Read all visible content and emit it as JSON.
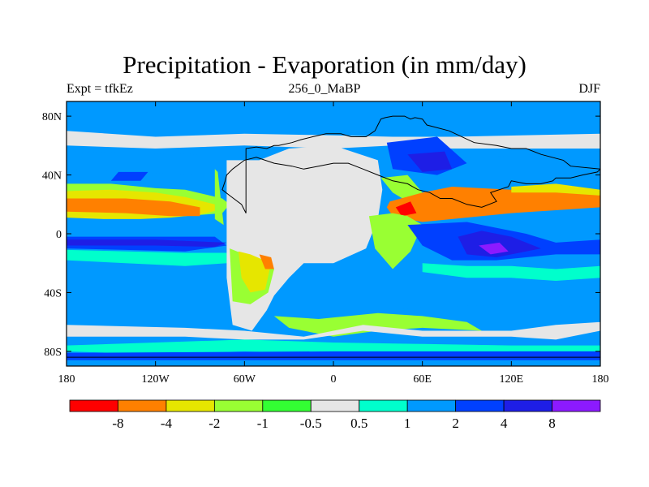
{
  "chart_data": {
    "type": "heatmap",
    "title": "Precipitation - Evaporation (in mm/day)",
    "left_string": "Expt = tfkEz",
    "center_string": "256_0_MaBP",
    "right_string": "DJF",
    "x_ticks": [
      {
        "value": -180,
        "label": "180"
      },
      {
        "value": -120,
        "label": "120W"
      },
      {
        "value": -60,
        "label": "60W"
      },
      {
        "value": 0,
        "label": "0"
      },
      {
        "value": 60,
        "label": "60E"
      },
      {
        "value": 120,
        "label": "120E"
      },
      {
        "value": 180,
        "label": "180"
      }
    ],
    "y_ticks": [
      {
        "value": 80,
        "label": "80N"
      },
      {
        "value": 40,
        "label": "40N"
      },
      {
        "value": 0,
        "label": "0"
      },
      {
        "value": -40,
        "label": "40S"
      },
      {
        "value": -80,
        "label": "80S"
      }
    ],
    "xlim": [
      -180,
      180
    ],
    "ylim": [
      -90,
      90
    ],
    "colorbar": {
      "colors": [
        "#ff0000",
        "#ff8000",
        "#e6e600",
        "#99ff33",
        "#33ff33",
        "#e6e6e6",
        "#00ffcc",
        "#0099ff",
        "#0040ff",
        "#1e1ee6",
        "#8c1aff"
      ],
      "levels": [
        "-8",
        "-4",
        "-2",
        "-1",
        "-0.5",
        "0.5",
        "1",
        "2",
        "4",
        "8"
      ]
    },
    "fill_regions": [
      {
        "color": "#e6e6e6",
        "lon": [
          -180,
          -120,
          -60,
          0,
          40,
          80,
          180,
          180,
          80,
          40,
          0,
          -60,
          -120,
          -180
        ],
        "lat": [
          70,
          66,
          68,
          67,
          66,
          66,
          68,
          58,
          58,
          60,
          58,
          60,
          58,
          60
        ]
      },
      {
        "color": "#0099ff",
        "lon": [
          -180,
          -90,
          0,
          60,
          180,
          180,
          60,
          0,
          -90,
          -180
        ],
        "lat": [
          56,
          54,
          54,
          50,
          56,
          44,
          44,
          42,
          40,
          44
        ]
      },
      {
        "color": "#0099ff",
        "lon": [
          -180,
          -90,
          0,
          60,
          120,
          180,
          180,
          120,
          60,
          0,
          -90,
          -180
        ],
        "lat": [
          -50,
          -50,
          -55,
          -50,
          -48,
          -50,
          -78,
          -78,
          -80,
          -78,
          -78,
          -78
        ]
      },
      {
        "color": "#00ffcc",
        "lon": [
          -180,
          -120,
          -60,
          0,
          60,
          120,
          180,
          180,
          120,
          60,
          0,
          -60,
          -120,
          -180
        ],
        "lat": [
          -76,
          -74,
          -72,
          -74,
          -75,
          -76,
          -76,
          -80,
          -80,
          -82,
          -82,
          -80,
          -82,
          -80
        ]
      },
      {
        "color": "#0040ff",
        "lon": [
          -180,
          0,
          180,
          180,
          0,
          -180
        ],
        "lat": [
          -81,
          -80,
          -80,
          -86,
          -86,
          -86
        ]
      },
      {
        "color": "#99ff33",
        "lon": [
          -180,
          -150,
          -120,
          -100,
          -75,
          -70,
          -75,
          -100,
          -120,
          -150,
          -180
        ],
        "lat": [
          34,
          34,
          31,
          30,
          24,
          20,
          14,
          12,
          13,
          14,
          14
        ]
      },
      {
        "color": "#e6e600",
        "lon": [
          -180,
          -150,
          -120,
          -100,
          -80,
          -78,
          -90,
          -110,
          -130,
          -155,
          -180
        ],
        "lat": [
          29,
          30,
          28,
          25,
          20,
          16,
          13,
          11,
          10,
          10,
          11
        ]
      },
      {
        "color": "#ff8000",
        "lon": [
          -180,
          -140,
          -110,
          -90,
          -90,
          -110,
          -140,
          -180
        ],
        "lat": [
          24,
          24,
          22,
          18,
          12,
          12,
          14,
          15
        ]
      },
      {
        "color": "#0040ff",
        "lon": [
          -180,
          -120,
          -80,
          -72,
          -100,
          -140,
          -180
        ],
        "lat": [
          -2,
          -2,
          -2,
          -8,
          -12,
          -11,
          -10
        ]
      },
      {
        "color": "#1e1ee6",
        "lon": [
          -180,
          -120,
          -72,
          -80,
          -120,
          -180
        ],
        "lat": [
          -4,
          -4,
          -6,
          -9,
          -8,
          -8
        ]
      },
      {
        "color": "#00ffcc",
        "lon": [
          -180,
          -100,
          -72,
          -72,
          -100,
          -140,
          -180
        ],
        "lat": [
          -11,
          -13,
          -13,
          -20,
          -22,
          -20,
          -18
        ]
      },
      {
        "color": "#0040ff",
        "lon": [
          -145,
          -125,
          -130,
          -150
        ],
        "lat": [
          42,
          42,
          36,
          36
        ]
      },
      {
        "color": "#e6e6e6",
        "lon": [
          -72,
          -50,
          -30,
          0,
          30,
          33,
          30,
          22,
          0,
          -20,
          -30,
          -40,
          -45,
          -55,
          -68,
          -72
        ],
        "lat": [
          50,
          50,
          58,
          60,
          50,
          30,
          10,
          -10,
          -20,
          -20,
          -30,
          -42,
          -52,
          -66,
          -62,
          -30
        ]
      },
      {
        "color": "#99ff33",
        "lon": [
          -70,
          -60,
          -40,
          -44,
          -56,
          -68
        ],
        "lat": [
          -10,
          -14,
          -24,
          -40,
          -48,
          -46
        ]
      },
      {
        "color": "#e6e600",
        "lon": [
          -64,
          -56,
          -42,
          -46,
          -56,
          -62
        ],
        "lat": [
          -12,
          -14,
          -20,
          -38,
          -40,
          -30
        ]
      },
      {
        "color": "#ff8000",
        "lon": [
          -50,
          -42,
          -40,
          -46
        ],
        "lat": [
          -14,
          -16,
          -24,
          -24
        ]
      },
      {
        "color": "#0040ff",
        "lon": [
          36,
          70,
          90,
          70,
          40
        ],
        "lat": [
          62,
          66,
          48,
          40,
          44
        ]
      },
      {
        "color": "#1e1ee6",
        "lon": [
          50,
          75,
          80,
          60
        ],
        "lat": [
          54,
          56,
          44,
          42
        ]
      },
      {
        "color": "#99ff33",
        "lon": [
          -80,
          -78,
          -74,
          -80
        ],
        "lat": [
          44,
          42,
          6,
          10
        ]
      },
      {
        "color": "#99ff33",
        "lon": [
          32,
          50,
          60,
          50,
          40
        ],
        "lat": [
          38,
          40,
          28,
          22,
          28
        ]
      },
      {
        "color": "#ff8000",
        "lon": [
          38,
          60,
          80,
          120,
          150,
          180,
          180,
          150,
          120,
          80,
          60,
          50,
          40,
          36
        ],
        "lat": [
          22,
          28,
          32,
          30,
          30,
          26,
          18,
          16,
          14,
          10,
          8,
          10,
          12,
          18
        ]
      },
      {
        "color": "#e6e600",
        "lon": [
          120,
          150,
          180,
          180,
          150,
          120
        ],
        "lat": [
          32,
          34,
          30,
          26,
          28,
          28
        ]
      },
      {
        "color": "#ff0000",
        "lon": [
          42,
          52,
          56,
          46
        ],
        "lat": [
          18,
          22,
          14,
          12
        ]
      },
      {
        "color": "#99ff33",
        "lon": [
          24,
          40,
          50,
          60,
          52,
          40,
          28
        ],
        "lat": [
          12,
          14,
          12,
          6,
          -12,
          -24,
          -10
        ]
      },
      {
        "color": "#0040ff",
        "lon": [
          50,
          90,
          130,
          150,
          180,
          180,
          150,
          110,
          80,
          60
        ],
        "lat": [
          6,
          8,
          0,
          -6,
          -4,
          -14,
          -14,
          -18,
          -18,
          -8
        ]
      },
      {
        "color": "#1e1ee6",
        "lon": [
          84,
          100,
          120,
          140,
          110,
          90
        ],
        "lat": [
          -2,
          2,
          -2,
          -10,
          -16,
          -14
        ]
      },
      {
        "color": "#8c1aff",
        "lon": [
          98,
          112,
          118,
          106
        ],
        "lat": [
          -8,
          -6,
          -12,
          -14
        ]
      },
      {
        "color": "#00ffcc",
        "lon": [
          60,
          90,
          120,
          150,
          180,
          180,
          150,
          120,
          90,
          60
        ],
        "lat": [
          -20,
          -22,
          -22,
          -24,
          -22,
          -30,
          -32,
          -30,
          -30,
          -26
        ]
      },
      {
        "color": "#99ff33",
        "lon": [
          -40,
          -10,
          30,
          60,
          90,
          100,
          60,
          30,
          0,
          -30
        ],
        "lat": [
          -56,
          -58,
          -54,
          -56,
          -60,
          -66,
          -64,
          -66,
          -70,
          -64
        ]
      },
      {
        "color": "#e6e6e6",
        "lon": [
          -180,
          -100,
          -60,
          -20,
          20,
          60,
          120,
          150,
          180,
          180,
          150,
          120,
          60,
          20,
          -20,
          -60,
          -100,
          -180
        ],
        "lat": [
          -62,
          -64,
          -66,
          -70,
          -62,
          -66,
          -66,
          -62,
          -60,
          -66,
          -72,
          -70,
          -70,
          -66,
          -72,
          -72,
          -70,
          -70
        ]
      }
    ],
    "land_outlines": [
      {
        "lon": [
          -59,
          -52,
          -45,
          -40,
          -37,
          -28,
          -22,
          -14,
          -5,
          5,
          12,
          22,
          28,
          30,
          32,
          35,
          40,
          48,
          52,
          55,
          60,
          63,
          78,
          95,
          110,
          120,
          130,
          140,
          155,
          160,
          180,
          178,
          168,
          160,
          150,
          148,
          140,
          130,
          120,
          118,
          106,
          110,
          100,
          90,
          80,
          72,
          65,
          57,
          50,
          40,
          30,
          20,
          10,
          0,
          -10,
          -20,
          -28,
          -40,
          -52,
          -60,
          -68,
          -72,
          -73,
          -75,
          -70,
          -62,
          -59
        ],
        "lat": [
          58,
          59,
          58,
          60,
          60,
          62,
          64,
          66,
          68,
          68,
          66,
          66,
          70,
          74,
          78,
          79,
          80,
          80,
          78,
          79,
          78,
          74,
          70,
          62,
          60,
          58,
          58,
          54,
          50,
          46,
          44,
          42,
          40,
          38,
          38,
          36,
          34,
          34,
          36,
          32,
          28,
          22,
          18,
          20,
          24,
          24,
          28,
          30,
          34,
          36,
          40,
          44,
          48,
          48,
          46,
          44,
          46,
          48,
          52,
          50,
          44,
          40,
          36,
          30,
          26,
          20,
          14
        ]
      }
    ]
  }
}
